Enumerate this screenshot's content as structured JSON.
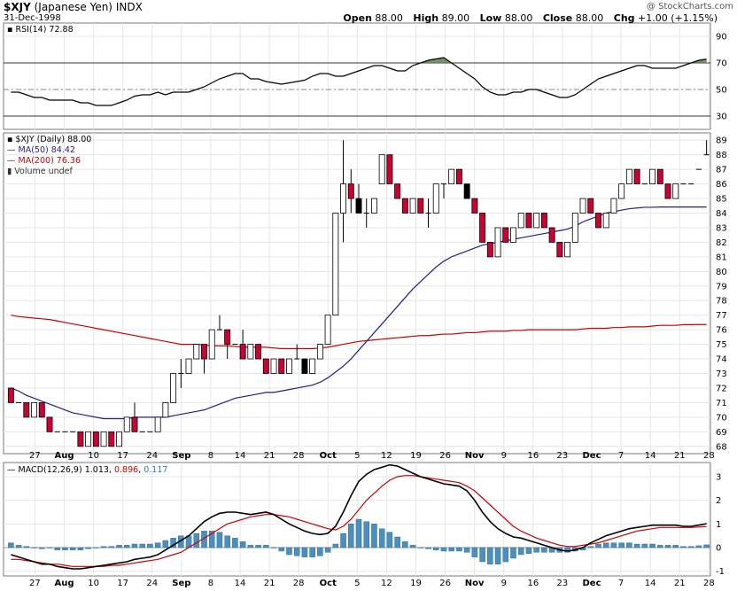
{
  "header": {
    "symbol": "$XJY",
    "name": "(Japanese Yen)",
    "exchange": "INDX",
    "date": "31-Dec-1998",
    "watermark": "@ StockCharts.com",
    "open_label": "Open",
    "open": "88.00",
    "high_label": "High",
    "high": "89.00",
    "low_label": "Low",
    "low": "88.00",
    "close_label": "Close",
    "close": "88.00",
    "chg_label": "Chg",
    "chg": "+1.00 (+1.15%)"
  },
  "legends": {
    "rsi": "RSI(14) 72.88",
    "price": "$XJY (Daily) 88.00",
    "ma50": "MA(50) 84.42",
    "ma200": "MA(200) 76.36",
    "volume": "Volume undef",
    "macd_label": "MACD(12,26,9)",
    "macd_val": "1.013",
    "signal_val": "0.896",
    "hist_val": "0.117"
  },
  "chart_data": [
    {
      "type": "candlestick",
      "panel": "price",
      "title": "$XJY (Daily) 88.00",
      "ylim": [
        67.5,
        89.5
      ],
      "y_ticks": [
        68,
        69,
        70,
        71,
        72,
        73,
        74,
        75,
        76,
        77,
        78,
        79,
        80,
        81,
        82,
        83,
        84,
        85,
        86,
        87,
        88,
        89
      ],
      "x_tick_labels": [
        "27",
        "Aug",
        "10",
        "17",
        "24",
        "Sep",
        "8",
        "14",
        "21",
        "28",
        "Oct",
        "5",
        "12",
        "19",
        "26",
        "Nov",
        "9",
        "16",
        "23",
        "Dec",
        "7",
        "14",
        "21",
        "28"
      ],
      "grid": true,
      "candles": [
        [
          72,
          72,
          71,
          71
        ],
        [
          71,
          71,
          71,
          71
        ],
        [
          71,
          71,
          70,
          70
        ],
        [
          70,
          71,
          70,
          71
        ],
        [
          71,
          71,
          70,
          70
        ],
        [
          70,
          70,
          69,
          69
        ],
        [
          69,
          69,
          69,
          69
        ],
        [
          69,
          69,
          69,
          69
        ],
        [
          69,
          69,
          69,
          69
        ],
        [
          69,
          69,
          68,
          68
        ],
        [
          68,
          69,
          68,
          69
        ],
        [
          69,
          69,
          68,
          68
        ],
        [
          68,
          69,
          68,
          69
        ],
        [
          69,
          69,
          68,
          68
        ],
        [
          68,
          69,
          68,
          69
        ],
        [
          69,
          70,
          69,
          70
        ],
        [
          70,
          71,
          69,
          69
        ],
        [
          69,
          69,
          69,
          69
        ],
        [
          69,
          69,
          69,
          69
        ],
        [
          69,
          70,
          69,
          70
        ],
        [
          70,
          71,
          70,
          71
        ],
        [
          71,
          73,
          71,
          73
        ],
        [
          73,
          74,
          72,
          73
        ],
        [
          73,
          74,
          73,
          74
        ],
        [
          74,
          75,
          74,
          75
        ],
        [
          75,
          75,
          73,
          74
        ],
        [
          74,
          76,
          74,
          76
        ],
        [
          76,
          77,
          76,
          76
        ],
        [
          76,
          76,
          74,
          75
        ],
        [
          75,
          75,
          75,
          75
        ],
        [
          75,
          76,
          74,
          74
        ],
        [
          74,
          75,
          74,
          75
        ],
        [
          75,
          75,
          74,
          74
        ],
        [
          74,
          74,
          73,
          73
        ],
        [
          73,
          74,
          73,
          74
        ],
        [
          74,
          74,
          73,
          73
        ],
        [
          73,
          74,
          73,
          74
        ],
        [
          74,
          75,
          74,
          74
        ],
        [
          74,
          74,
          73,
          73
        ],
        [
          73,
          74,
          73,
          74
        ],
        [
          74,
          75,
          74,
          75
        ],
        [
          75,
          77,
          75,
          77
        ],
        [
          77,
          84,
          77,
          84
        ],
        [
          84,
          89,
          82,
          86
        ],
        [
          86,
          87,
          84,
          85
        ],
        [
          85,
          86,
          84,
          84
        ],
        [
          84,
          85,
          83,
          84
        ],
        [
          84,
          85,
          84,
          85
        ],
        [
          86,
          88,
          86,
          88
        ],
        [
          88,
          88,
          86,
          86
        ],
        [
          86,
          86,
          85,
          85
        ],
        [
          85,
          85,
          84,
          84
        ],
        [
          84,
          85,
          84,
          85
        ],
        [
          85,
          85,
          84,
          84
        ],
        [
          84,
          85,
          83,
          84
        ],
        [
          84,
          86,
          84,
          86
        ],
        [
          86,
          86,
          85,
          86
        ],
        [
          86,
          87,
          86,
          87
        ],
        [
          87,
          87,
          86,
          86
        ],
        [
          86,
          86,
          85,
          85
        ],
        [
          85,
          85,
          84,
          84
        ],
        [
          84,
          84,
          82,
          82
        ],
        [
          82,
          82,
          81,
          81
        ],
        [
          81,
          83,
          81,
          83
        ],
        [
          83,
          83,
          82,
          82
        ],
        [
          82,
          83,
          82,
          83
        ],
        [
          83,
          84,
          83,
          84
        ],
        [
          84,
          84,
          83,
          83
        ],
        [
          83,
          84,
          83,
          84
        ],
        [
          84,
          84,
          83,
          83
        ],
        [
          83,
          83,
          82,
          82
        ],
        [
          82,
          82,
          81,
          81
        ],
        [
          81,
          82,
          81,
          82
        ],
        [
          82,
          84,
          82,
          84
        ],
        [
          84,
          85,
          84,
          85
        ],
        [
          85,
          85,
          84,
          84
        ],
        [
          84,
          84,
          83,
          83
        ],
        [
          83,
          84,
          83,
          84
        ],
        [
          84,
          85,
          84,
          85
        ],
        [
          85,
          86,
          85,
          86
        ],
        [
          86,
          87,
          86,
          87
        ],
        [
          87,
          87,
          86,
          86
        ],
        [
          86,
          86,
          86,
          86
        ],
        [
          86,
          87,
          86,
          87
        ],
        [
          87,
          87,
          86,
          86
        ],
        [
          86,
          86,
          85,
          85
        ],
        [
          85,
          86,
          85,
          86
        ],
        [
          86,
          86,
          86,
          86
        ],
        [
          86,
          86,
          86,
          86
        ],
        [
          87,
          87,
          87,
          87
        ],
        [
          88,
          89,
          88,
          88
        ]
      ],
      "series": [
        {
          "name": "MA(50) 84.42",
          "color": "#1f1f8a",
          "values": [
            72,
            71.8,
            71.5,
            71.3,
            71.1,
            70.9,
            70.7,
            70.5,
            70.3,
            70.2,
            70.1,
            70,
            69.9,
            69.9,
            69.9,
            69.9,
            70,
            70,
            70,
            70,
            70,
            70.1,
            70.2,
            70.3,
            70.4,
            70.5,
            70.7,
            70.9,
            71.1,
            71.3,
            71.4,
            71.5,
            71.6,
            71.7,
            71.7,
            71.8,
            71.9,
            72,
            72.1,
            72.2,
            72.4,
            72.7,
            73.1,
            73.5,
            74,
            74.6,
            75.2,
            75.8,
            76.4,
            77,
            77.6,
            78.2,
            78.8,
            79.3,
            79.8,
            80.3,
            80.7,
            81,
            81.2,
            81.4,
            81.6,
            81.8,
            81.9,
            82,
            82.1,
            82.2,
            82.3,
            82.4,
            82.5,
            82.6,
            82.7,
            82.8,
            82.9,
            83.1,
            83.4,
            83.6,
            83.8,
            84,
            84.1,
            84.2,
            84.3,
            84.35,
            84.4,
            84.4,
            84.42,
            84.42,
            84.42,
            84.42,
            84.42,
            84.42,
            84.42
          ]
        },
        {
          "name": "MA(200) 76.36",
          "color": "#cc0000",
          "values": [
            77,
            76.9,
            76.85,
            76.8,
            76.75,
            76.7,
            76.6,
            76.5,
            76.4,
            76.3,
            76.2,
            76.1,
            76,
            75.9,
            75.8,
            75.7,
            75.6,
            75.5,
            75.4,
            75.3,
            75.2,
            75.1,
            75,
            75,
            75,
            74.95,
            74.9,
            74.9,
            74.9,
            74.85,
            74.8,
            74.8,
            74.8,
            74.8,
            74.75,
            74.7,
            74.7,
            74.7,
            74.7,
            74.7,
            74.75,
            74.8,
            74.9,
            75,
            75.1,
            75.2,
            75.25,
            75.3,
            75.35,
            75.4,
            75.45,
            75.5,
            75.55,
            75.6,
            75.6,
            75.65,
            75.7,
            75.7,
            75.75,
            75.8,
            75.8,
            75.85,
            75.9,
            75.9,
            75.9,
            75.95,
            75.95,
            76,
            76,
            76,
            76,
            76,
            76,
            76,
            76.05,
            76.1,
            76.1,
            76.1,
            76.15,
            76.15,
            76.2,
            76.2,
            76.2,
            76.25,
            76.3,
            76.3,
            76.3,
            76.35,
            76.35,
            76.36,
            76.36
          ]
        }
      ]
    },
    {
      "type": "line",
      "panel": "rsi",
      "title": "RSI(14) 72.88",
      "ylim": [
        20,
        100
      ],
      "y_ticks": [
        30,
        50,
        70,
        90
      ],
      "reference_lines": [
        30,
        50,
        70
      ],
      "grid": true,
      "series": [
        {
          "name": "RSI(14) 72.88",
          "color": "#000000",
          "values": [
            48,
            48,
            46,
            44,
            44,
            42,
            42,
            42,
            42,
            40,
            40,
            38,
            38,
            38,
            40,
            42,
            45,
            46,
            46,
            48,
            46,
            48,
            48,
            48,
            50,
            52,
            55,
            58,
            60,
            62,
            62,
            58,
            58,
            56,
            55,
            54,
            55,
            56,
            57,
            60,
            62,
            62,
            60,
            60,
            62,
            64,
            66,
            68,
            68,
            66,
            64,
            64,
            68,
            70,
            72,
            73,
            74,
            70,
            66,
            62,
            58,
            52,
            48,
            46,
            46,
            48,
            48,
            50,
            50,
            48,
            46,
            44,
            44,
            46,
            50,
            54,
            58,
            60,
            62,
            64,
            66,
            68,
            68,
            66,
            66,
            66,
            66,
            68,
            70,
            72,
            72.88
          ]
        }
      ]
    },
    {
      "type": "line",
      "panel": "macd",
      "title": "MACD(12,26,9) 1.013, 0.896, 0.117",
      "ylim": [
        -1.2,
        3.6
      ],
      "y_ticks": [
        -1,
        0,
        1,
        2,
        3
      ],
      "grid": true,
      "series": [
        {
          "name": "MACD(12,26,9) 1.013",
          "color": "#000000",
          "values": [
            -0.3,
            -0.4,
            -0.5,
            -0.6,
            -0.7,
            -0.7,
            -0.8,
            -0.85,
            -0.9,
            -0.9,
            -0.85,
            -0.8,
            -0.75,
            -0.7,
            -0.65,
            -0.6,
            -0.5,
            -0.45,
            -0.4,
            -0.3,
            -0.1,
            0.1,
            0.3,
            0.5,
            0.8,
            1.1,
            1.3,
            1.45,
            1.5,
            1.5,
            1.45,
            1.4,
            1.45,
            1.5,
            1.4,
            1.2,
            1,
            0.85,
            0.7,
            0.6,
            0.55,
            0.6,
            0.9,
            1.5,
            2.2,
            2.8,
            3.1,
            3.3,
            3.4,
            3.5,
            3.45,
            3.3,
            3.15,
            3.0,
            2.9,
            2.8,
            2.7,
            2.65,
            2.6,
            2.4,
            2.0,
            1.5,
            1.1,
            0.8,
            0.6,
            0.45,
            0.4,
            0.3,
            0.2,
            0.1,
            0,
            -0.1,
            -0.15,
            -0.1,
            0,
            0.2,
            0.35,
            0.5,
            0.6,
            0.7,
            0.8,
            0.85,
            0.9,
            0.95,
            0.95,
            0.95,
            0.95,
            0.9,
            0.9,
            0.95,
            1.013
          ]
        },
        {
          "name": "0.896",
          "color": "#cc0000",
          "values": [
            -0.5,
            -0.5,
            -0.55,
            -0.6,
            -0.65,
            -0.7,
            -0.7,
            -0.75,
            -0.8,
            -0.8,
            -0.8,
            -0.8,
            -0.8,
            -0.75,
            -0.75,
            -0.7,
            -0.65,
            -0.6,
            -0.55,
            -0.5,
            -0.4,
            -0.3,
            -0.2,
            0,
            0.2,
            0.4,
            0.6,
            0.8,
            1,
            1.1,
            1.2,
            1.3,
            1.35,
            1.4,
            1.4,
            1.35,
            1.3,
            1.2,
            1.1,
            1,
            0.9,
            0.8,
            0.75,
            0.9,
            1.2,
            1.6,
            2.0,
            2.3,
            2.6,
            2.85,
            3.0,
            3.05,
            3.05,
            3.0,
            2.95,
            2.9,
            2.85,
            2.8,
            2.75,
            2.6,
            2.4,
            2.1,
            1.8,
            1.5,
            1.2,
            0.9,
            0.7,
            0.55,
            0.4,
            0.3,
            0.2,
            0.1,
            0.05,
            0.05,
            0.1,
            0.15,
            0.2,
            0.3,
            0.4,
            0.5,
            0.6,
            0.7,
            0.75,
            0.8,
            0.85,
            0.85,
            0.85,
            0.85,
            0.85,
            0.87,
            0.896
          ]
        },
        {
          "name": "0.117",
          "color": "#4a8fbd",
          "values": [
            0.2,
            0.1,
            0.05,
            0,
            -0.05,
            0,
            -0.1,
            -0.1,
            -0.1,
            -0.1,
            -0.05,
            0,
            0.05,
            0.05,
            0.1,
            0.1,
            0.15,
            0.15,
            0.15,
            0.2,
            0.3,
            0.4,
            0.5,
            0.5,
            0.6,
            0.7,
            0.7,
            0.65,
            0.5,
            0.4,
            0.25,
            0.1,
            0.1,
            0.1,
            0,
            -0.15,
            -0.3,
            -0.35,
            -0.4,
            -0.4,
            -0.35,
            -0.2,
            0.15,
            0.6,
            1.0,
            1.2,
            1.1,
            1.0,
            0.8,
            0.65,
            0.45,
            0.25,
            0.1,
            0,
            -0.05,
            -0.1,
            -0.15,
            -0.15,
            -0.15,
            -0.2,
            -0.4,
            -0.6,
            -0.7,
            -0.7,
            -0.6,
            -0.45,
            -0.3,
            -0.25,
            -0.2,
            -0.2,
            -0.2,
            -0.2,
            -0.2,
            -0.15,
            -0.1,
            0.05,
            0.15,
            0.2,
            0.2,
            0.2,
            0.2,
            0.15,
            0.15,
            0.15,
            0.1,
            0.1,
            0.1,
            0.05,
            0.05,
            0.08,
            0.117
          ]
        }
      ]
    }
  ]
}
